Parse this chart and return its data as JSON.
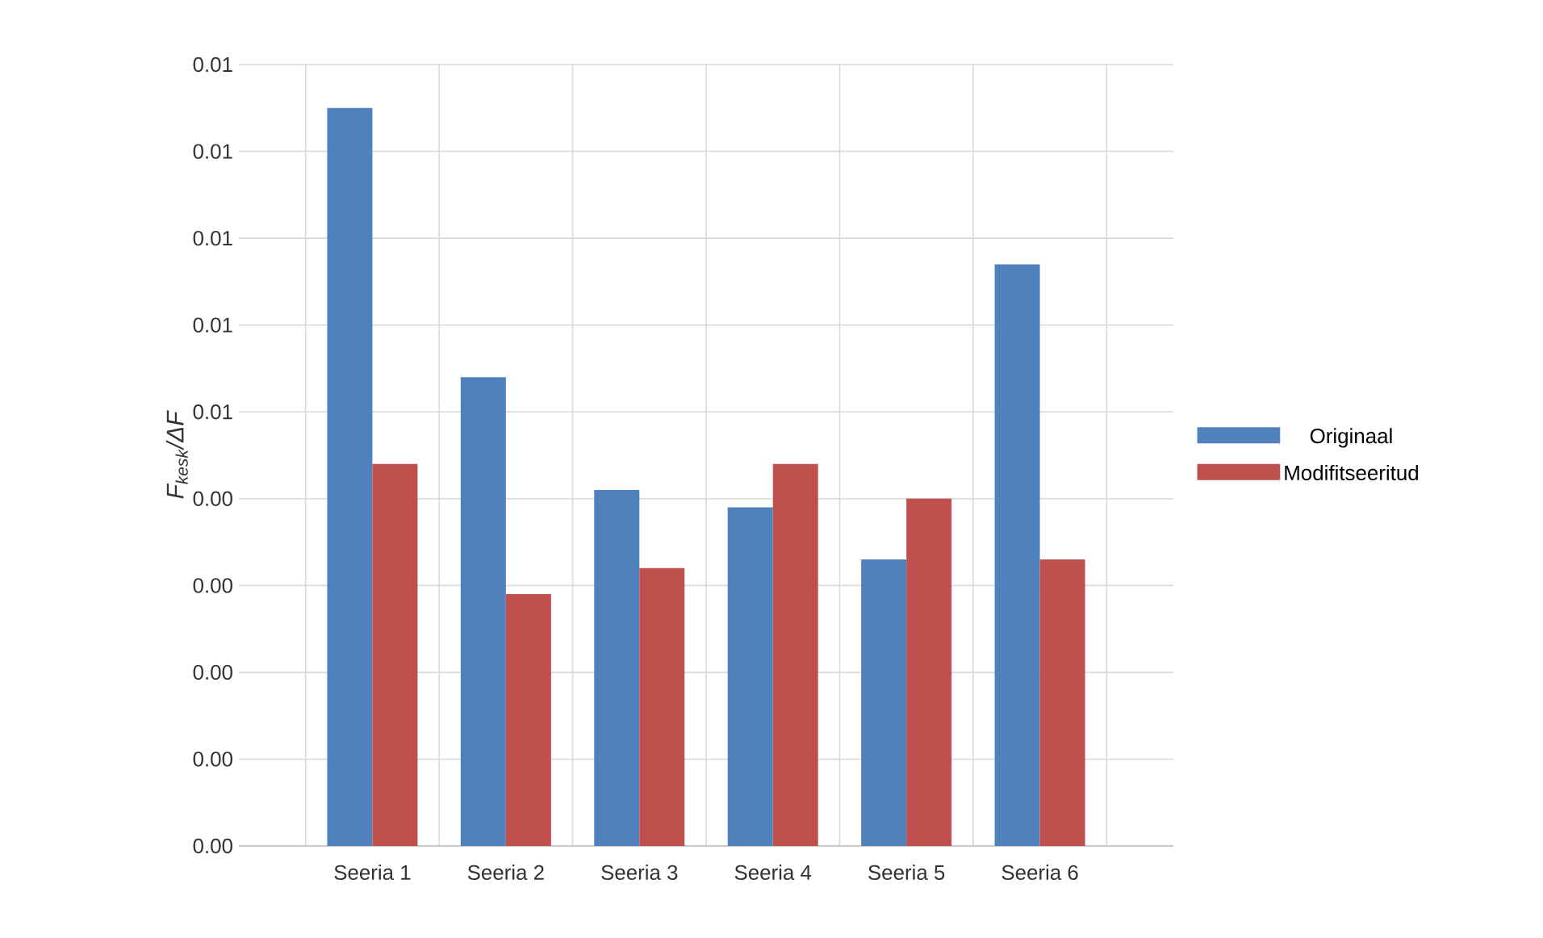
{
  "chart_data": {
    "type": "bar",
    "ylabel": "F$_{kesk}$/ΔF",
    "categories": [
      "Seeria 1",
      "Seeria 2",
      "Seeria 3",
      "Seeria 4",
      "Seeria 5",
      "Seeria 6"
    ],
    "series": [
      {
        "name": "Originaal",
        "color": "#4f81bd",
        "values": [
          0.0085,
          0.0054,
          0.0041,
          0.0039,
          0.0033,
          0.0067
        ]
      },
      {
        "name": "Modifitseeritud",
        "color": "#c0504d",
        "values": [
          0.0044,
          0.0029,
          0.0032,
          0.0044,
          0.004,
          0.0033
        ]
      }
    ],
    "ylim": [
      0,
      0.009
    ],
    "yticks": [
      {
        "value": 0,
        "label": "0.00"
      },
      {
        "value": 0.001,
        "label": "0.00"
      },
      {
        "value": 0.002,
        "label": "0.00"
      },
      {
        "value": 0.003,
        "label": "0.00"
      },
      {
        "value": 0.004,
        "label": "0.00"
      },
      {
        "value": 0.005,
        "label": "0.01"
      },
      {
        "value": 0.006,
        "label": "0.01"
      },
      {
        "value": 0.007,
        "label": "0.01"
      },
      {
        "value": 0.008,
        "label": "0.01"
      },
      {
        "value": 0.009,
        "label": "0.01"
      }
    ],
    "grid": true,
    "legend": "right"
  }
}
